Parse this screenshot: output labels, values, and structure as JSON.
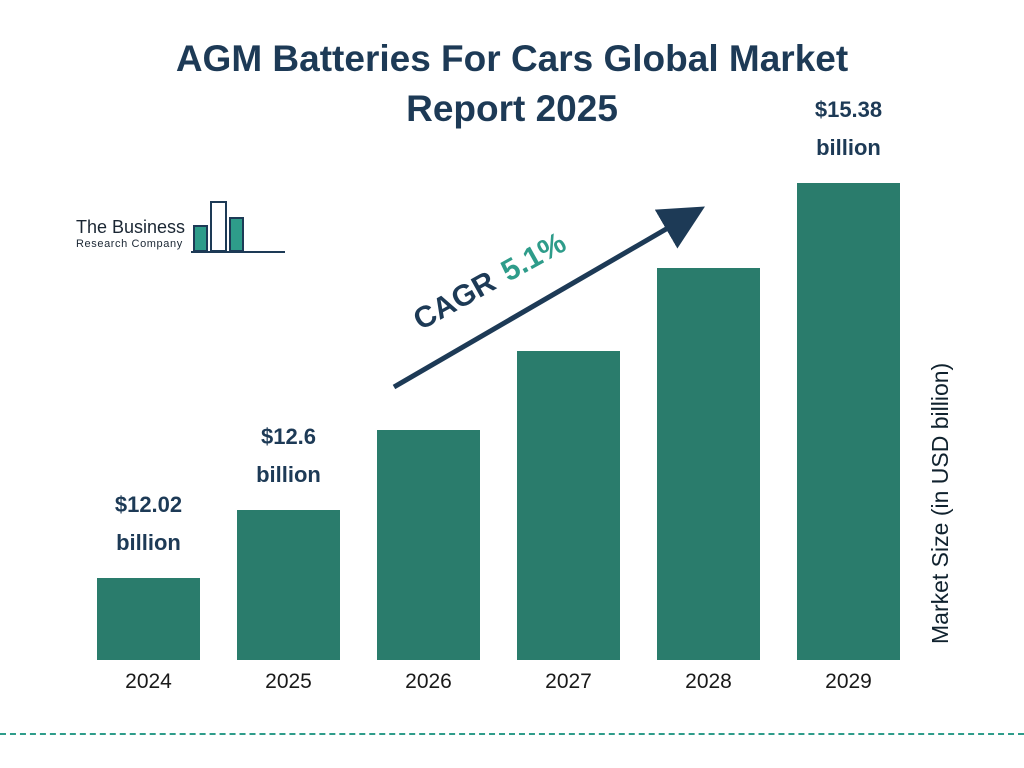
{
  "title": "AGM Batteries For Cars Global Market Report 2025",
  "logo": {
    "line1": "The Business",
    "line2": "Research Company"
  },
  "cagr": {
    "prefix": "CAGR",
    "value": "5.1%"
  },
  "ylabel": "Market Size (in USD billion)",
  "colors": {
    "bar_teal": "#2a7c6c",
    "navy": "#1d3a56",
    "accent_teal": "#2e9c8a"
  },
  "chart_data": {
    "type": "bar",
    "title": "AGM Batteries For Cars Global Market Report 2025",
    "categories": [
      "2024",
      "2025",
      "2026",
      "2027",
      "2028",
      "2029"
    ],
    "values": [
      12.02,
      12.6,
      13.28,
      13.95,
      14.66,
      15.38
    ],
    "bar_labels": [
      "$12.02 billion",
      "$12.6 billion",
      "",
      "",
      "",
      "$15.38 billion"
    ],
    "ylabel": "Market Size (in USD billion)",
    "annotation": "CAGR 5.1%",
    "legend": false,
    "grid": false,
    "ylim_implied": [
      11.3,
      15.38
    ],
    "px": {
      "height_min": 82,
      "per_unit": 117.6
    }
  }
}
